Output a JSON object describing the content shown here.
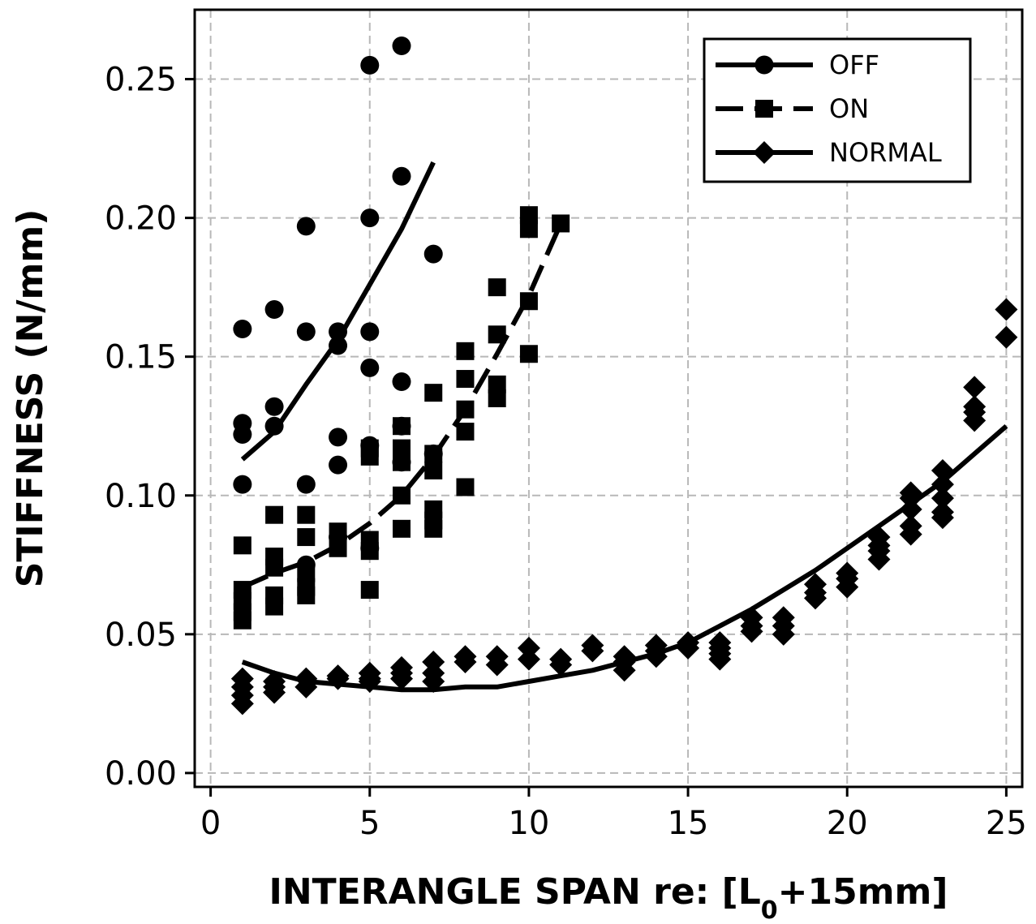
{
  "chart_data": {
    "type": "scatter",
    "xlabel": {
      "main": "INTERANGLE SPAN re: [L",
      "sub": "0",
      "tail": "+15mm]"
    },
    "ylabel": "STIFFNESS (N/mm)",
    "xlim": [
      -0.5,
      25.5
    ],
    "ylim": [
      -0.005,
      0.275
    ],
    "xticks": [
      0,
      5,
      10,
      15,
      20,
      25
    ],
    "xtick_labels": [
      "0",
      "5",
      "10",
      "15",
      "20",
      "25"
    ],
    "yticks": [
      0.0,
      0.05,
      0.1,
      0.15,
      0.2,
      0.25
    ],
    "ytick_labels": [
      "0.00",
      "0.05",
      "0.10",
      "0.15",
      "0.20",
      "0.25"
    ],
    "grid": true,
    "legend_position": "top-right",
    "series": [
      {
        "name": "OFF",
        "marker": "circle",
        "line_style": "solid",
        "points": [
          [
            1,
            0.16
          ],
          [
            1,
            0.126
          ],
          [
            1,
            0.122
          ],
          [
            1,
            0.104
          ],
          [
            2,
            0.167
          ],
          [
            2,
            0.132
          ],
          [
            2,
            0.125
          ],
          [
            3,
            0.197
          ],
          [
            3,
            0.159
          ],
          [
            3,
            0.104
          ],
          [
            3,
            0.075
          ],
          [
            4,
            0.159
          ],
          [
            4,
            0.154
          ],
          [
            4,
            0.121
          ],
          [
            4,
            0.111
          ],
          [
            4,
            0.085
          ],
          [
            5,
            0.255
          ],
          [
            5,
            0.2
          ],
          [
            5,
            0.159
          ],
          [
            5,
            0.146
          ],
          [
            5,
            0.118
          ],
          [
            5,
            0.081
          ],
          [
            6,
            0.262
          ],
          [
            6,
            0.215
          ],
          [
            6,
            0.141
          ],
          [
            6,
            0.125
          ],
          [
            6,
            0.112
          ],
          [
            7,
            0.187
          ],
          [
            7,
            0.115
          ]
        ],
        "fit": [
          [
            1,
            0.113
          ],
          [
            2,
            0.123
          ],
          [
            3,
            0.14
          ],
          [
            4,
            0.156
          ],
          [
            5,
            0.176
          ],
          [
            6,
            0.196
          ],
          [
            7,
            0.22
          ]
        ]
      },
      {
        "name": "ON",
        "marker": "square",
        "line_style": "dashed",
        "points": [
          [
            1,
            0.082
          ],
          [
            1,
            0.066
          ],
          [
            1,
            0.062
          ],
          [
            1,
            0.058
          ],
          [
            1,
            0.055
          ],
          [
            2,
            0.093
          ],
          [
            2,
            0.078
          ],
          [
            2,
            0.074
          ],
          [
            2,
            0.064
          ],
          [
            2,
            0.06
          ],
          [
            3,
            0.093
          ],
          [
            3,
            0.085
          ],
          [
            3,
            0.072
          ],
          [
            3,
            0.067
          ],
          [
            3,
            0.064
          ],
          [
            4,
            0.087
          ],
          [
            4,
            0.081
          ],
          [
            5,
            0.117
          ],
          [
            5,
            0.114
          ],
          [
            5,
            0.084
          ],
          [
            5,
            0.08
          ],
          [
            5,
            0.066
          ],
          [
            6,
            0.125
          ],
          [
            6,
            0.117
          ],
          [
            6,
            0.112
          ],
          [
            6,
            0.1
          ],
          [
            6,
            0.088
          ],
          [
            7,
            0.137
          ],
          [
            7,
            0.115
          ],
          [
            7,
            0.109
          ],
          [
            7,
            0.095
          ],
          [
            7,
            0.091
          ],
          [
            7,
            0.088
          ],
          [
            8,
            0.152
          ],
          [
            8,
            0.142
          ],
          [
            8,
            0.131
          ],
          [
            8,
            0.123
          ],
          [
            8,
            0.103
          ],
          [
            9,
            0.175
          ],
          [
            9,
            0.158
          ],
          [
            9,
            0.14
          ],
          [
            9,
            0.135
          ],
          [
            10,
            0.201
          ],
          [
            10,
            0.196
          ],
          [
            10,
            0.17
          ],
          [
            10,
            0.151
          ],
          [
            11,
            0.198
          ]
        ],
        "fit": [
          [
            1,
            0.067
          ],
          [
            2,
            0.072
          ],
          [
            3,
            0.076
          ],
          [
            4,
            0.082
          ],
          [
            5,
            0.09
          ],
          [
            6,
            0.1
          ],
          [
            7,
            0.114
          ],
          [
            8,
            0.131
          ],
          [
            9,
            0.151
          ],
          [
            10,
            0.172
          ],
          [
            11,
            0.198
          ]
        ]
      },
      {
        "name": "NORMAL",
        "marker": "diamond",
        "line_style": "solid",
        "points": [
          [
            1,
            0.034
          ],
          [
            1,
            0.031
          ],
          [
            1,
            0.028
          ],
          [
            1,
            0.025
          ],
          [
            2,
            0.033
          ],
          [
            2,
            0.031
          ],
          [
            2,
            0.029
          ],
          [
            3,
            0.034
          ],
          [
            3,
            0.031
          ],
          [
            4,
            0.035
          ],
          [
            4,
            0.034
          ],
          [
            5,
            0.036
          ],
          [
            5,
            0.034
          ],
          [
            5,
            0.033
          ],
          [
            6,
            0.038
          ],
          [
            6,
            0.036
          ],
          [
            6,
            0.034
          ],
          [
            7,
            0.04
          ],
          [
            7,
            0.036
          ],
          [
            7,
            0.033
          ],
          [
            8,
            0.042
          ],
          [
            8,
            0.04
          ],
          [
            9,
            0.042
          ],
          [
            9,
            0.039
          ],
          [
            10,
            0.045
          ],
          [
            10,
            0.041
          ],
          [
            11,
            0.041
          ],
          [
            11,
            0.039
          ],
          [
            12,
            0.046
          ],
          [
            12,
            0.044
          ],
          [
            13,
            0.042
          ],
          [
            13,
            0.04
          ],
          [
            13,
            0.037
          ],
          [
            14,
            0.046
          ],
          [
            14,
            0.044
          ],
          [
            14,
            0.042
          ],
          [
            15,
            0.047
          ],
          [
            15,
            0.045
          ],
          [
            16,
            0.047
          ],
          [
            16,
            0.045
          ],
          [
            16,
            0.043
          ],
          [
            16,
            0.041
          ],
          [
            17,
            0.056
          ],
          [
            17,
            0.053
          ],
          [
            17,
            0.051
          ],
          [
            18,
            0.056
          ],
          [
            18,
            0.053
          ],
          [
            18,
            0.05
          ],
          [
            19,
            0.068
          ],
          [
            19,
            0.065
          ],
          [
            19,
            0.063
          ],
          [
            20,
            0.072
          ],
          [
            20,
            0.07
          ],
          [
            20,
            0.067
          ],
          [
            21,
            0.085
          ],
          [
            21,
            0.082
          ],
          [
            21,
            0.08
          ],
          [
            21,
            0.077
          ],
          [
            22,
            0.101
          ],
          [
            22,
            0.099
          ],
          [
            22,
            0.095
          ],
          [
            22,
            0.089
          ],
          [
            22,
            0.086
          ],
          [
            23,
            0.109
          ],
          [
            23,
            0.104
          ],
          [
            23,
            0.099
          ],
          [
            23,
            0.094
          ],
          [
            23,
            0.092
          ],
          [
            24,
            0.139
          ],
          [
            24,
            0.132
          ],
          [
            24,
            0.13
          ],
          [
            24,
            0.127
          ],
          [
            25,
            0.167
          ],
          [
            25,
            0.157
          ]
        ],
        "fit": [
          [
            1,
            0.04
          ],
          [
            2,
            0.036
          ],
          [
            3,
            0.033
          ],
          [
            4,
            0.032
          ],
          [
            5,
            0.031
          ],
          [
            6,
            0.03
          ],
          [
            7,
            0.03
          ],
          [
            8,
            0.031
          ],
          [
            9,
            0.031
          ],
          [
            10,
            0.033
          ],
          [
            11,
            0.035
          ],
          [
            12,
            0.037
          ],
          [
            13,
            0.04
          ],
          [
            14,
            0.043
          ],
          [
            15,
            0.047
          ],
          [
            16,
            0.053
          ],
          [
            17,
            0.059
          ],
          [
            18,
            0.066
          ],
          [
            19,
            0.073
          ],
          [
            20,
            0.081
          ],
          [
            21,
            0.089
          ],
          [
            22,
            0.097
          ],
          [
            23,
            0.105
          ],
          [
            24,
            0.115
          ],
          [
            25,
            0.125
          ]
        ]
      }
    ]
  }
}
